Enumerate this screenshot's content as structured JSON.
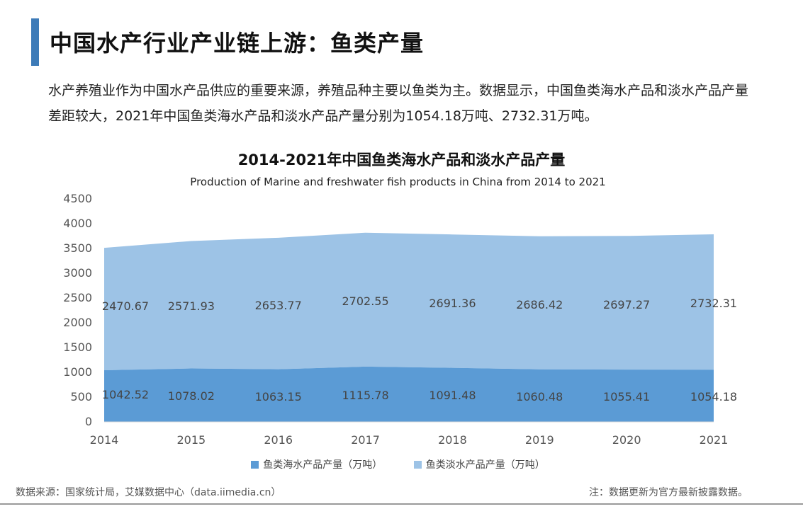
{
  "header": {
    "title": "中国水产行业产业链上游：鱼类产量"
  },
  "intro": {
    "text": "水产养殖业作为中国水产品供应的重要来源，养殖品种主要以鱼类为主。数据显示，中国鱼类海水产品和淡水产品产量差距较大，2021年中国鱼类海水产品和淡水产品产量分别为1054.18万吨、2732.31万吨。"
  },
  "chart_data": {
    "type": "area",
    "title": "2014-2021年中国鱼类海水产品和淡水产品产量",
    "subtitle": "Production of Marine and freshwater fish products in China from 2014 to 2021",
    "categories": [
      "2014",
      "2015",
      "2016",
      "2017",
      "2018",
      "2019",
      "2020",
      "2021"
    ],
    "stacked": true,
    "series": [
      {
        "name": "鱼类海水产品产量（万吨）",
        "values": [
          1042.52,
          1078.02,
          1063.15,
          1115.78,
          1091.48,
          1060.48,
          1055.41,
          1054.18
        ],
        "labels": [
          "1042.52",
          "1078.02",
          "1063.15",
          "1115.78",
          "1091.48",
          "1060.48",
          "1055.41",
          "1054.18"
        ],
        "color": "#5b9bd5"
      },
      {
        "name": "鱼类淡水产品产量（万吨）",
        "values": [
          2470.67,
          2571.93,
          2653.77,
          2702.55,
          2691.36,
          2686.42,
          2697.27,
          2732.31
        ],
        "labels": [
          "2470.67",
          "2571.93",
          "2653.77",
          "2702.55",
          "2691.36",
          "2686.42",
          "2697.27",
          "2732.31"
        ],
        "color": "#9dc3e6"
      }
    ],
    "ylim": [
      0,
      4500
    ],
    "yticks": [
      "0",
      "500",
      "1000",
      "1500",
      "2000",
      "2500",
      "3000",
      "3500",
      "4000",
      "4500"
    ],
    "grid": false,
    "legend_position": "bottom"
  },
  "footer": {
    "source": "数据来源：国家统计局，艾媒数据中心（data.iimedia.cn）",
    "note": "注：数据更新为官方最新披露数据。"
  }
}
